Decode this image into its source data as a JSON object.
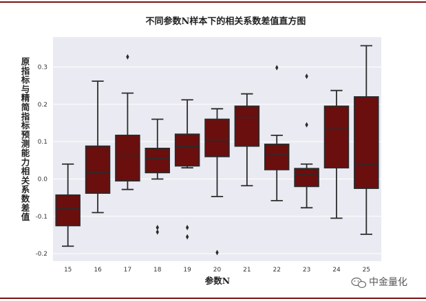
{
  "chart_data": {
    "type": "box",
    "title": "不同参数N样本下的相关系数差值直方图",
    "xlabel": "参数N",
    "ylabel": "原指标与精简指标预测能力相关系数差值",
    "categories": [
      "15",
      "16",
      "17",
      "18",
      "19",
      "20",
      "21",
      "22",
      "23",
      "24",
      "25"
    ],
    "ylim": [
      -0.22,
      0.38
    ],
    "yticks": [
      -0.2,
      -0.1,
      0.0,
      0.1,
      0.2,
      0.3
    ],
    "ytick_labels": [
      "-0.2",
      "-0.1",
      "0.0",
      "0.1",
      "0.2",
      "0.3"
    ],
    "grid": true,
    "box_color": "#6b0e0e",
    "boxes": [
      {
        "n": "15",
        "whislo": -0.18,
        "q1": -0.125,
        "med": -0.078,
        "q3": -0.043,
        "whishi": 0.04,
        "fliers": []
      },
      {
        "n": "16",
        "whislo": -0.09,
        "q1": -0.038,
        "med": 0.017,
        "q3": 0.088,
        "whishi": 0.262,
        "fliers": []
      },
      {
        "n": "17",
        "whislo": -0.028,
        "q1": -0.005,
        "med": 0.063,
        "q3": 0.117,
        "whishi": 0.23,
        "fliers": [
          0.327
        ]
      },
      {
        "n": "18",
        "whislo": 0.0,
        "q1": 0.017,
        "med": 0.055,
        "q3": 0.082,
        "whishi": 0.16,
        "fliers": [
          -0.13,
          -0.142
        ]
      },
      {
        "n": "19",
        "whislo": 0.03,
        "q1": 0.035,
        "med": 0.087,
        "q3": 0.12,
        "whishi": 0.212,
        "fliers": [
          -0.13,
          -0.155
        ]
      },
      {
        "n": "20",
        "whislo": -0.047,
        "q1": 0.06,
        "med": 0.105,
        "q3": 0.16,
        "whishi": 0.188,
        "fliers": [
          -0.197
        ]
      },
      {
        "n": "21",
        "whislo": -0.018,
        "q1": 0.088,
        "med": 0.165,
        "q3": 0.195,
        "whishi": 0.228,
        "fliers": []
      },
      {
        "n": "22",
        "whislo": -0.058,
        "q1": 0.025,
        "med": 0.067,
        "q3": 0.093,
        "whishi": 0.117,
        "fliers": [
          0.298
        ]
      },
      {
        "n": "23",
        "whislo": -0.077,
        "q1": -0.02,
        "med": 0.013,
        "q3": 0.028,
        "whishi": 0.04,
        "fliers": [
          0.275,
          0.145
        ]
      },
      {
        "n": "24",
        "whislo": -0.105,
        "q1": 0.03,
        "med": 0.137,
        "q3": 0.195,
        "whishi": 0.237,
        "fliers": []
      },
      {
        "n": "25",
        "whislo": -0.148,
        "q1": -0.025,
        "med": 0.04,
        "q3": 0.22,
        "whishi": 0.357,
        "fliers": []
      }
    ]
  },
  "watermark": {
    "icon": "wechat-icon",
    "text": "中金量化"
  }
}
